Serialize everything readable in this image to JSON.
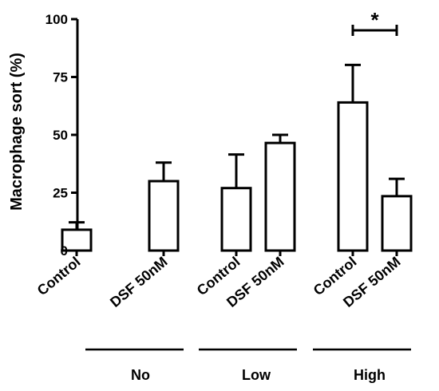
{
  "chart_data": {
    "type": "bar",
    "ylabel": "Macrophage sort (%)",
    "ylim": [
      0,
      100
    ],
    "yticks": [
      "0",
      "25",
      "50",
      "75",
      "100"
    ],
    "bar_labels": [
      "Control",
      "DSF 50nM",
      "Control",
      "DSF 50nM",
      "Control",
      "DSF 50nM"
    ],
    "group_labels": [
      "No",
      "Low",
      "High"
    ],
    "values": [
      9,
      30,
      27,
      46.5,
      64,
      23.5
    ],
    "errors": [
      3.2,
      8,
      14.5,
      3.5,
      16.2,
      7.5
    ],
    "significance": {
      "text": "*",
      "between": [
        4,
        5
      ]
    },
    "bar_fill": "#ffffff",
    "stroke_color": "#000000"
  }
}
